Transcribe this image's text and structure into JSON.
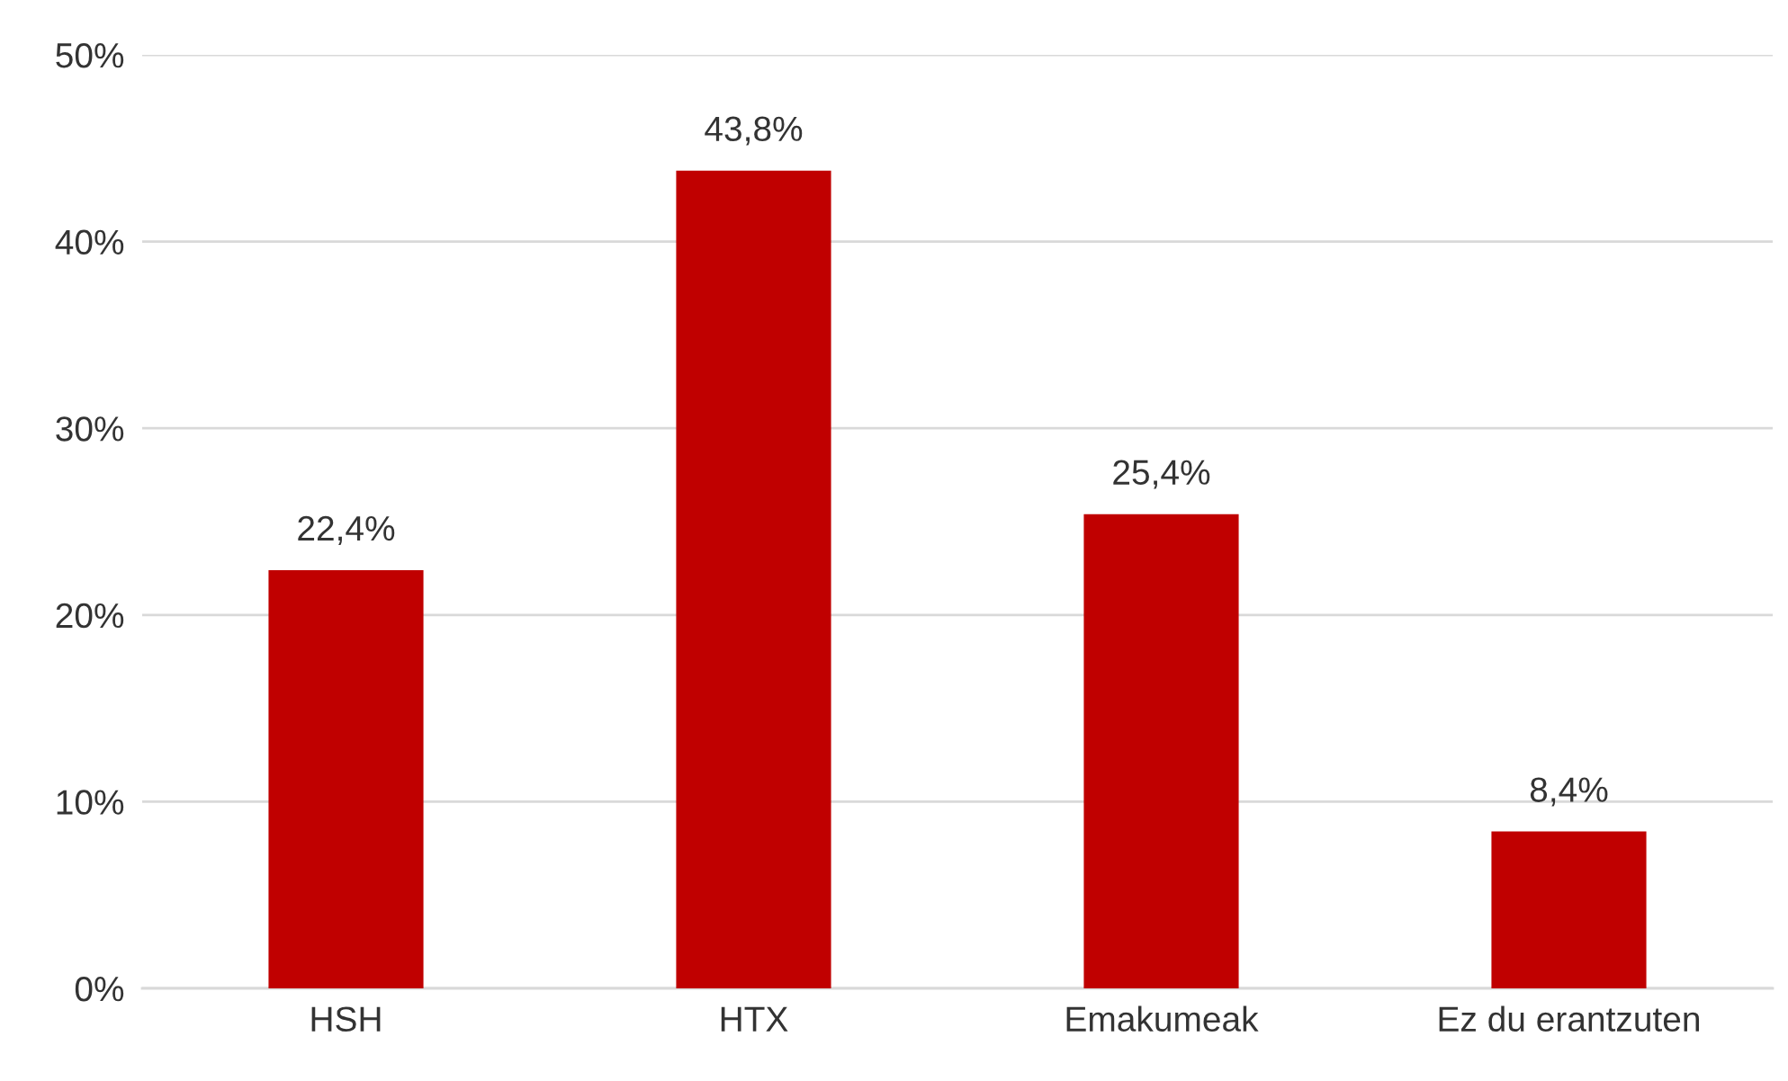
{
  "chart_data": {
    "type": "bar",
    "categories": [
      "HSH",
      "HTX",
      "Emakumeak",
      "Ez du erantzuten"
    ],
    "values": [
      22.4,
      43.8,
      25.4,
      8.4
    ],
    "value_labels": [
      "22,4%",
      "43,8%",
      "25,4%",
      "8,4%"
    ],
    "color": "#c00000",
    "ylim": [
      0,
      50
    ],
    "yticks": [
      {
        "value": 0,
        "label": "0%"
      },
      {
        "value": 10,
        "label": "10%"
      },
      {
        "value": 20,
        "label": "20%"
      },
      {
        "value": 30,
        "label": "30%"
      },
      {
        "value": 40,
        "label": "40%"
      },
      {
        "value": 50,
        "label": "50%"
      }
    ],
    "grid": "y",
    "legend": false
  }
}
